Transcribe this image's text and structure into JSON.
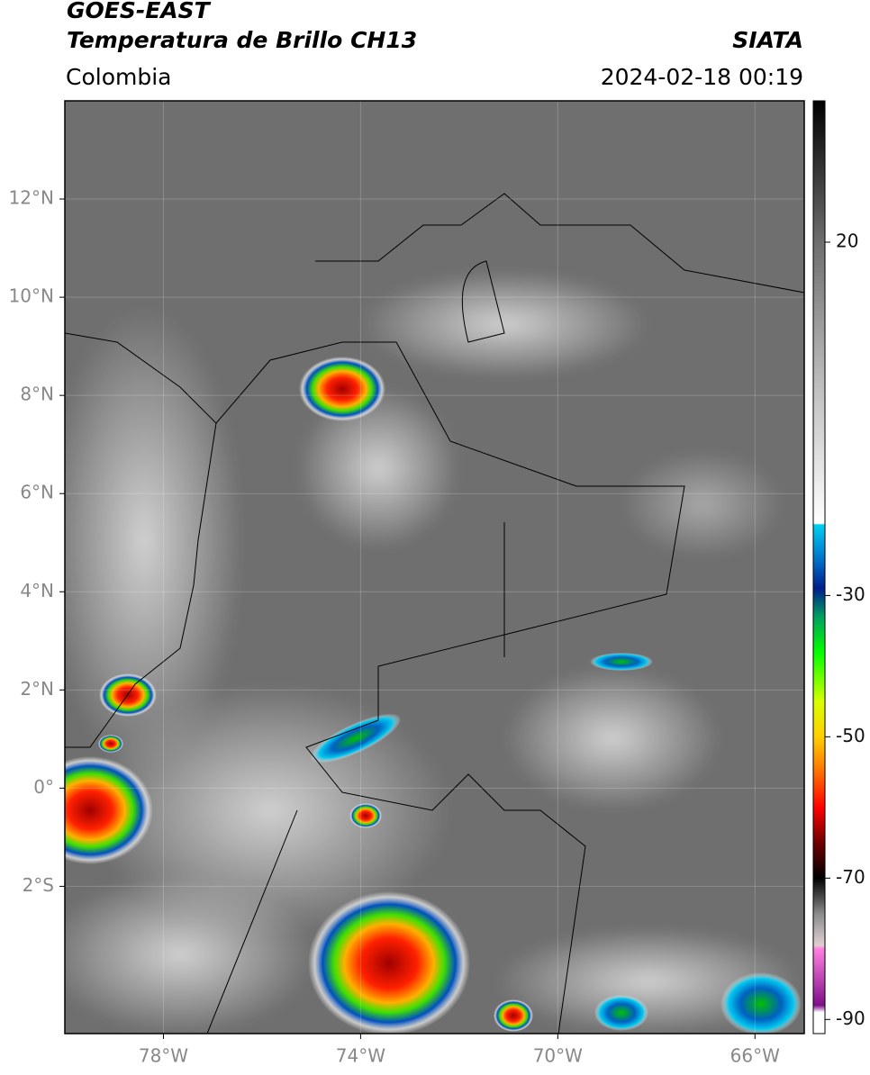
{
  "header": {
    "title": "GOES-EAST",
    "subtitle": "Temperatura de Brillo CH13",
    "source": "SIATA",
    "region": "Colombia",
    "datetime": "2024-02-18 00:19"
  },
  "map": {
    "xlim": [
      -80,
      -65
    ],
    "ylim": [
      -5,
      14
    ],
    "xticks": [
      {
        "value": -78,
        "label": "78°W"
      },
      {
        "value": -74,
        "label": "74°W"
      },
      {
        "value": -70,
        "label": "70°W"
      },
      {
        "value": -66,
        "label": "66°W"
      }
    ],
    "yticks": [
      {
        "value": 12,
        "label": "12°N"
      },
      {
        "value": 10,
        "label": "10°N"
      },
      {
        "value": 8,
        "label": "8°N"
      },
      {
        "value": 6,
        "label": "6°N"
      },
      {
        "value": 4,
        "label": "4°N"
      },
      {
        "value": 2,
        "label": "2°N"
      },
      {
        "value": 0,
        "label": "0°"
      },
      {
        "value": -2,
        "label": "2°S"
      }
    ],
    "grid": true
  },
  "colorbar": {
    "clim": [
      -92,
      40
    ],
    "ticks": [
      20,
      -30,
      -50,
      -70,
      -90
    ],
    "colormap": [
      {
        "value": 40,
        "color": "#000000"
      },
      {
        "value": 20,
        "color": "#6e6e6e"
      },
      {
        "value": 0,
        "color": "#bdbdbd"
      },
      {
        "value": -19.8,
        "color": "#ffffff"
      },
      {
        "value": -20,
        "color": "#00d0f0"
      },
      {
        "value": -25,
        "color": "#0070c8"
      },
      {
        "value": -29,
        "color": "#001e8c"
      },
      {
        "value": -33,
        "color": "#00a060"
      },
      {
        "value": -38,
        "color": "#00ff00"
      },
      {
        "value": -45,
        "color": "#d8ff00"
      },
      {
        "value": -50,
        "color": "#ffd000"
      },
      {
        "value": -55,
        "color": "#ff7000"
      },
      {
        "value": -60,
        "color": "#ff0000"
      },
      {
        "value": -65,
        "color": "#700000"
      },
      {
        "value": -70,
        "color": "#000000"
      },
      {
        "value": -75,
        "color": "#8a8a8a"
      },
      {
        "value": -79.5,
        "color": "#e0d0d0"
      },
      {
        "value": -80,
        "color": "#ff80e0"
      },
      {
        "value": -88,
        "color": "#80108a"
      },
      {
        "value": -89,
        "color": "#ffffff"
      },
      {
        "value": -92,
        "color": "#ffffff"
      }
    ]
  }
}
